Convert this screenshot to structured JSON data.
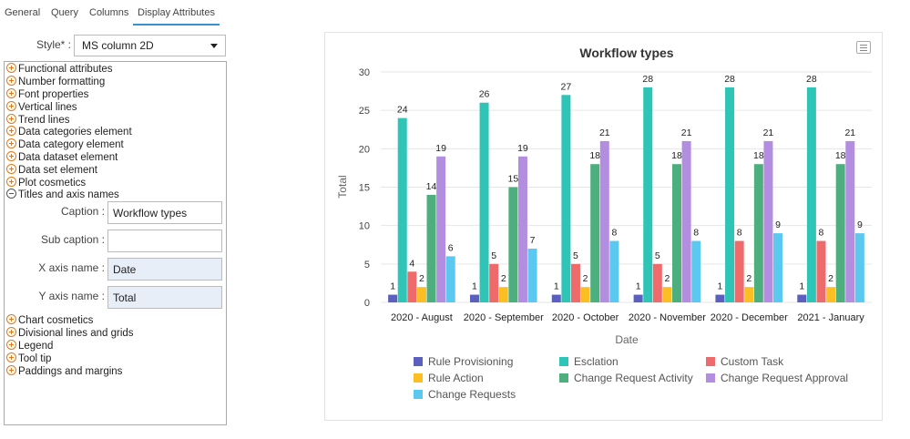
{
  "tabs": [
    {
      "label": "General"
    },
    {
      "label": "Query"
    },
    {
      "label": "Columns"
    },
    {
      "label": "Display Attributes"
    }
  ],
  "style": {
    "label": "Style* :",
    "value": "MS column 2D"
  },
  "tree": {
    "items_top": [
      "Functional attributes",
      "Number formatting",
      "Font properties",
      "Vertical lines",
      "Trend lines",
      "Data categories element",
      "Data category element",
      "Data dataset element",
      "Data set element",
      "Plot cosmetics"
    ],
    "expanded_item": "Titles and axis names",
    "fields": {
      "caption_label": "Caption :",
      "caption_value": "Workflow types",
      "subcaption_label": "Sub caption :",
      "subcaption_value": "",
      "xaxis_label": "X axis name :",
      "xaxis_value": "Date",
      "yaxis_label": "Y axis name :",
      "yaxis_value": "Total"
    },
    "items_bottom": [
      "Chart cosmetics",
      "Divisional lines and grids",
      "Legend",
      "Tool tip",
      "Paddings and margins"
    ]
  },
  "chart_data": {
    "type": "bar",
    "title": "Workflow types",
    "xlabel": "Date",
    "ylabel": "Total",
    "ylim": [
      0,
      30
    ],
    "yticks": [
      0,
      5,
      10,
      15,
      20,
      25,
      30
    ],
    "categories": [
      "2020 - August",
      "2020 - September",
      "2020 - October",
      "2020 - November",
      "2020 - December",
      "2021 - January"
    ],
    "series": [
      {
        "name": "Rule Provisioning",
        "color": "#5b5fbd",
        "values": [
          1,
          1,
          1,
          1,
          1,
          1
        ]
      },
      {
        "name": "Esclation",
        "color": "#2ec4b6",
        "values": [
          24,
          26,
          27,
          28,
          28,
          28
        ]
      },
      {
        "name": "Custom Task",
        "color": "#ef6b6b",
        "values": [
          4,
          5,
          5,
          5,
          8,
          8
        ]
      },
      {
        "name": "Rule Action",
        "color": "#fbbf24",
        "values": [
          2,
          2,
          2,
          2,
          2,
          2
        ]
      },
      {
        "name": "Change Request Activity",
        "color": "#4caf7d",
        "values": [
          14,
          15,
          18,
          18,
          18,
          18
        ]
      },
      {
        "name": "Change Request Approval",
        "color": "#b38ee0",
        "values": [
          19,
          19,
          21,
          21,
          21,
          21
        ]
      },
      {
        "name": "Change Requests",
        "color": "#5bc8f0",
        "values": [
          6,
          7,
          8,
          8,
          9,
          9
        ]
      }
    ],
    "legend_position": "bottom"
  }
}
